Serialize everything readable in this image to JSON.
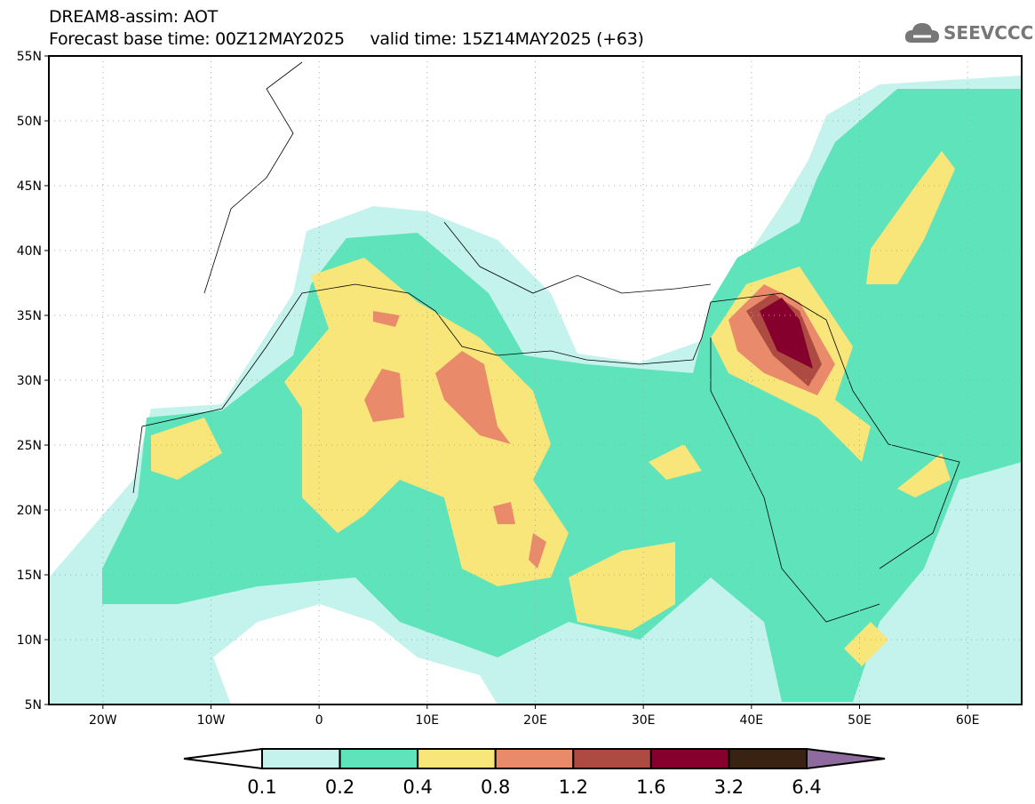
{
  "header": {
    "title": "DREAM8-assim: AOT",
    "subtitle": "Forecast base time: 00Z12MAY2025     valid time: 15Z14MAY2025 (+63)",
    "logo_text": "SEEVCCC",
    "logo_icon": "cloud-icon"
  },
  "map": {
    "lat_labels": [
      "55N",
      "50N",
      "45N",
      "40N",
      "35N",
      "30N",
      "25N",
      "20N",
      "15N",
      "10N",
      "5N"
    ],
    "lon_labels": [
      "20W",
      "10W",
      "0",
      "10E",
      "20E",
      "30E",
      "40E",
      "50E",
      "60E"
    ],
    "lat_range": [
      5,
      55
    ],
    "lon_range": [
      -25,
      65
    ]
  },
  "legend": {
    "levels": [
      "0.1",
      "0.2",
      "0.4",
      "0.8",
      "1.2",
      "1.6",
      "3.2",
      "6.4"
    ],
    "colors": [
      "#c4f2ec",
      "#5fe3bb",
      "#f8e67a",
      "#e98b6a",
      "#ad4a42",
      "#85002d",
      "#3a2212"
    ],
    "below_color": "#ffffff",
    "above_color": "#8f6a9e"
  }
}
